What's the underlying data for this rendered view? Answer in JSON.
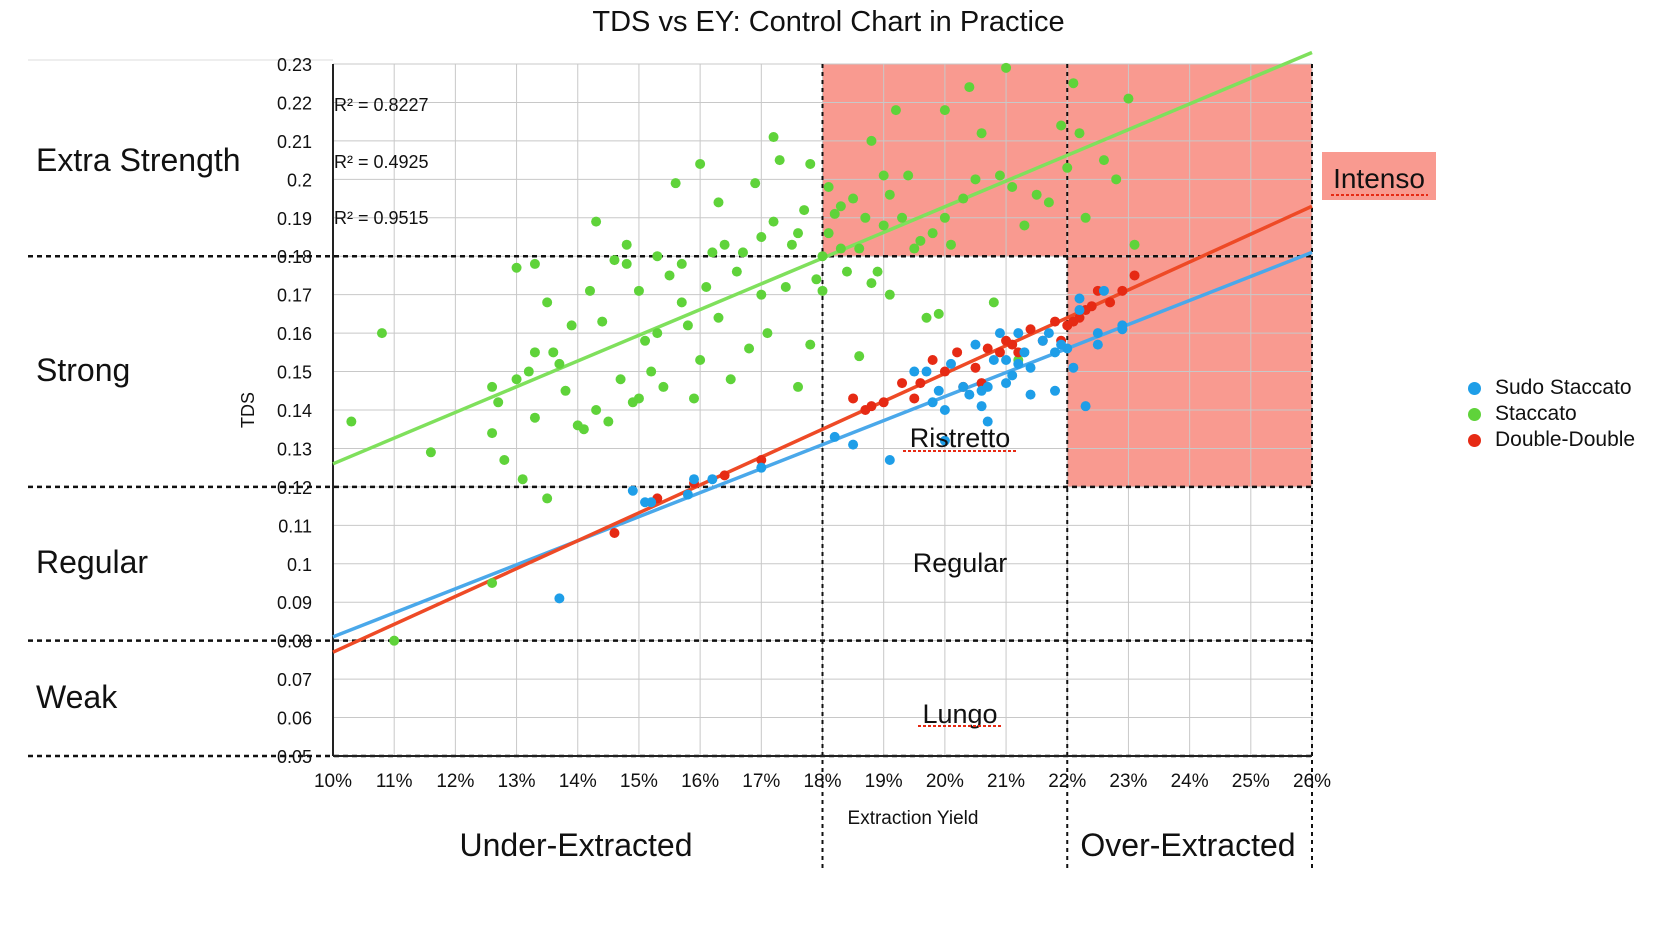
{
  "chart_data": {
    "type": "scatter",
    "title": "TDS vs EY: Control Chart in Practice",
    "xlabel": "Extraction Yield",
    "ylabel": "TDS",
    "xlim": [
      10,
      26
    ],
    "ylim": [
      0.05,
      0.23
    ],
    "x_ticks": [
      "10%",
      "11%",
      "12%",
      "13%",
      "14%",
      "15%",
      "16%",
      "17%",
      "18%",
      "19%",
      "20%",
      "21%",
      "22%",
      "23%",
      "24%",
      "25%",
      "26%"
    ],
    "y_ticks": [
      "0.05",
      "0.06",
      "0.07",
      "0.08",
      "0.09",
      "0.1",
      "0.11",
      "0.12",
      "0.13",
      "0.14",
      "0.15",
      "0.16",
      "0.17",
      "0.18",
      "0.19",
      "0.2",
      "0.21",
      "0.22",
      "0.23"
    ],
    "grid": true,
    "legend_position": "right",
    "r_squared": [
      "R² = 0.8227",
      "R² = 0.4925",
      "R² = 0.9515"
    ],
    "strength_labels": [
      "Extra Strength",
      "Strong",
      "Regular",
      "Weak"
    ],
    "extraction_labels": [
      "Under-Extracted",
      "Over-Extracted"
    ],
    "zone_labels": [
      "Intenso",
      "Ristretto",
      "Regular",
      "Lungo"
    ],
    "thresholds": {
      "tds": [
        0.05,
        0.08,
        0.12,
        0.18
      ],
      "ey": [
        18,
        22,
        26
      ]
    },
    "series": [
      {
        "name": "Sudo Staccato",
        "color": "#1e9ee8",
        "trend": [
          [
            10,
            0.081
          ],
          [
            26,
            0.181
          ]
        ],
        "points": [
          [
            13.7,
            0.091
          ],
          [
            14.9,
            0.119
          ],
          [
            15.1,
            0.116
          ],
          [
            15.2,
            0.116
          ],
          [
            15.8,
            0.118
          ],
          [
            15.9,
            0.122
          ],
          [
            16.2,
            0.122
          ],
          [
            17.0,
            0.125
          ],
          [
            18.2,
            0.133
          ],
          [
            18.5,
            0.131
          ],
          [
            19.1,
            0.127
          ],
          [
            19.5,
            0.15
          ],
          [
            19.7,
            0.15
          ],
          [
            19.8,
            0.142
          ],
          [
            19.9,
            0.145
          ],
          [
            20.0,
            0.14
          ],
          [
            20.0,
            0.132
          ],
          [
            20.1,
            0.152
          ],
          [
            20.3,
            0.146
          ],
          [
            20.4,
            0.144
          ],
          [
            20.5,
            0.157
          ],
          [
            20.6,
            0.145
          ],
          [
            20.6,
            0.141
          ],
          [
            20.7,
            0.146
          ],
          [
            20.7,
            0.137
          ],
          [
            20.8,
            0.153
          ],
          [
            20.9,
            0.16
          ],
          [
            21.0,
            0.147
          ],
          [
            21.0,
            0.153
          ],
          [
            21.1,
            0.149
          ],
          [
            21.2,
            0.152
          ],
          [
            21.2,
            0.16
          ],
          [
            21.3,
            0.155
          ],
          [
            21.4,
            0.144
          ],
          [
            21.4,
            0.151
          ],
          [
            21.6,
            0.158
          ],
          [
            21.7,
            0.16
          ],
          [
            21.8,
            0.155
          ],
          [
            21.8,
            0.145
          ],
          [
            21.9,
            0.157
          ],
          [
            22.0,
            0.156
          ],
          [
            22.1,
            0.151
          ],
          [
            22.2,
            0.169
          ],
          [
            22.2,
            0.166
          ],
          [
            22.3,
            0.141
          ],
          [
            22.5,
            0.157
          ],
          [
            22.5,
            0.16
          ],
          [
            22.6,
            0.171
          ],
          [
            22.9,
            0.162
          ],
          [
            22.9,
            0.161
          ]
        ]
      },
      {
        "name": "Staccato",
        "color": "#5fd33a",
        "trend": [
          [
            10,
            0.126
          ],
          [
            26,
            0.233
          ]
        ],
        "points": [
          [
            10.3,
            0.137
          ],
          [
            10.8,
            0.16
          ],
          [
            11.0,
            0.08
          ],
          [
            11.6,
            0.129
          ],
          [
            12.6,
            0.095
          ],
          [
            12.6,
            0.134
          ],
          [
            12.6,
            0.146
          ],
          [
            12.7,
            0.142
          ],
          [
            12.8,
            0.127
          ],
          [
            13.0,
            0.148
          ],
          [
            13.0,
            0.177
          ],
          [
            13.1,
            0.122
          ],
          [
            13.2,
            0.15
          ],
          [
            13.3,
            0.138
          ],
          [
            13.3,
            0.155
          ],
          [
            13.3,
            0.178
          ],
          [
            13.5,
            0.117
          ],
          [
            13.5,
            0.168
          ],
          [
            13.6,
            0.155
          ],
          [
            13.7,
            0.152
          ],
          [
            13.8,
            0.145
          ],
          [
            13.9,
            0.162
          ],
          [
            14.0,
            0.136
          ],
          [
            14.1,
            0.135
          ],
          [
            14.2,
            0.171
          ],
          [
            14.3,
            0.189
          ],
          [
            14.3,
            0.14
          ],
          [
            14.4,
            0.163
          ],
          [
            14.5,
            0.137
          ],
          [
            14.6,
            0.179
          ],
          [
            14.7,
            0.148
          ],
          [
            14.8,
            0.178
          ],
          [
            14.8,
            0.183
          ],
          [
            14.9,
            0.142
          ],
          [
            15.0,
            0.171
          ],
          [
            15.0,
            0.143
          ],
          [
            15.1,
            0.158
          ],
          [
            15.2,
            0.15
          ],
          [
            15.3,
            0.18
          ],
          [
            15.3,
            0.16
          ],
          [
            15.4,
            0.146
          ],
          [
            15.5,
            0.175
          ],
          [
            15.6,
            0.199
          ],
          [
            15.7,
            0.178
          ],
          [
            15.7,
            0.168
          ],
          [
            15.8,
            0.162
          ],
          [
            15.9,
            0.143
          ],
          [
            16.0,
            0.204
          ],
          [
            16.0,
            0.153
          ],
          [
            16.1,
            0.172
          ],
          [
            16.2,
            0.181
          ],
          [
            16.3,
            0.194
          ],
          [
            16.3,
            0.164
          ],
          [
            16.4,
            0.183
          ],
          [
            16.5,
            0.148
          ],
          [
            16.6,
            0.176
          ],
          [
            16.7,
            0.181
          ],
          [
            16.8,
            0.156
          ],
          [
            16.9,
            0.199
          ],
          [
            17.0,
            0.185
          ],
          [
            17.0,
            0.17
          ],
          [
            17.1,
            0.16
          ],
          [
            17.2,
            0.189
          ],
          [
            17.2,
            0.211
          ],
          [
            17.3,
            0.205
          ],
          [
            17.4,
            0.172
          ],
          [
            17.5,
            0.183
          ],
          [
            17.6,
            0.146
          ],
          [
            17.6,
            0.186
          ],
          [
            17.7,
            0.192
          ],
          [
            17.8,
            0.157
          ],
          [
            17.8,
            0.204
          ],
          [
            17.9,
            0.174
          ],
          [
            18.0,
            0.171
          ],
          [
            18.0,
            0.18
          ],
          [
            18.1,
            0.198
          ],
          [
            18.1,
            0.186
          ],
          [
            18.2,
            0.191
          ],
          [
            18.3,
            0.193
          ],
          [
            18.3,
            0.182
          ],
          [
            18.4,
            0.176
          ],
          [
            18.5,
            0.195
          ],
          [
            18.6,
            0.182
          ],
          [
            18.6,
            0.154
          ],
          [
            18.7,
            0.19
          ],
          [
            18.8,
            0.21
          ],
          [
            18.8,
            0.173
          ],
          [
            18.9,
            0.176
          ],
          [
            19.0,
            0.201
          ],
          [
            19.0,
            0.188
          ],
          [
            19.1,
            0.196
          ],
          [
            19.1,
            0.17
          ],
          [
            19.2,
            0.218
          ],
          [
            19.3,
            0.19
          ],
          [
            19.4,
            0.201
          ],
          [
            19.5,
            0.182
          ],
          [
            19.6,
            0.184
          ],
          [
            19.7,
            0.164
          ],
          [
            19.8,
            0.186
          ],
          [
            19.9,
            0.165
          ],
          [
            20.0,
            0.218
          ],
          [
            20.0,
            0.19
          ],
          [
            20.1,
            0.183
          ],
          [
            20.3,
            0.195
          ],
          [
            20.4,
            0.224
          ],
          [
            20.5,
            0.2
          ],
          [
            20.6,
            0.212
          ],
          [
            20.8,
            0.168
          ],
          [
            20.9,
            0.201
          ],
          [
            21.0,
            0.229
          ],
          [
            21.1,
            0.198
          ],
          [
            21.2,
            0.153
          ],
          [
            21.3,
            0.188
          ],
          [
            21.5,
            0.196
          ],
          [
            21.7,
            0.194
          ],
          [
            21.9,
            0.214
          ],
          [
            22.0,
            0.203
          ],
          [
            22.1,
            0.225
          ],
          [
            22.2,
            0.212
          ],
          [
            22.3,
            0.19
          ],
          [
            22.6,
            0.205
          ],
          [
            22.8,
            0.2
          ],
          [
            23.0,
            0.221
          ],
          [
            23.1,
            0.183
          ]
        ]
      },
      {
        "name": "Double-Double",
        "color": "#e62a14",
        "trend": [
          [
            10,
            0.077
          ],
          [
            26,
            0.193
          ]
        ],
        "points": [
          [
            14.6,
            0.108
          ],
          [
            15.3,
            0.117
          ],
          [
            15.9,
            0.121
          ],
          [
            16.4,
            0.123
          ],
          [
            17.0,
            0.127
          ],
          [
            18.5,
            0.143
          ],
          [
            18.7,
            0.14
          ],
          [
            18.8,
            0.141
          ],
          [
            19.0,
            0.142
          ],
          [
            19.3,
            0.147
          ],
          [
            19.5,
            0.143
          ],
          [
            19.6,
            0.147
          ],
          [
            19.8,
            0.153
          ],
          [
            20.0,
            0.15
          ],
          [
            20.2,
            0.155
          ],
          [
            20.3,
            0.146
          ],
          [
            20.5,
            0.151
          ],
          [
            20.6,
            0.147
          ],
          [
            20.7,
            0.156
          ],
          [
            20.9,
            0.155
          ],
          [
            21.0,
            0.158
          ],
          [
            21.1,
            0.157
          ],
          [
            21.2,
            0.155
          ],
          [
            21.4,
            0.161
          ],
          [
            21.6,
            0.158
          ],
          [
            21.8,
            0.163
          ],
          [
            21.9,
            0.158
          ],
          [
            22.0,
            0.162
          ],
          [
            22.1,
            0.163
          ],
          [
            22.2,
            0.164
          ],
          [
            22.3,
            0.166
          ],
          [
            22.4,
            0.167
          ],
          [
            22.5,
            0.171
          ],
          [
            22.7,
            0.168
          ],
          [
            22.9,
            0.171
          ],
          [
            23.1,
            0.175
          ]
        ]
      }
    ]
  }
}
